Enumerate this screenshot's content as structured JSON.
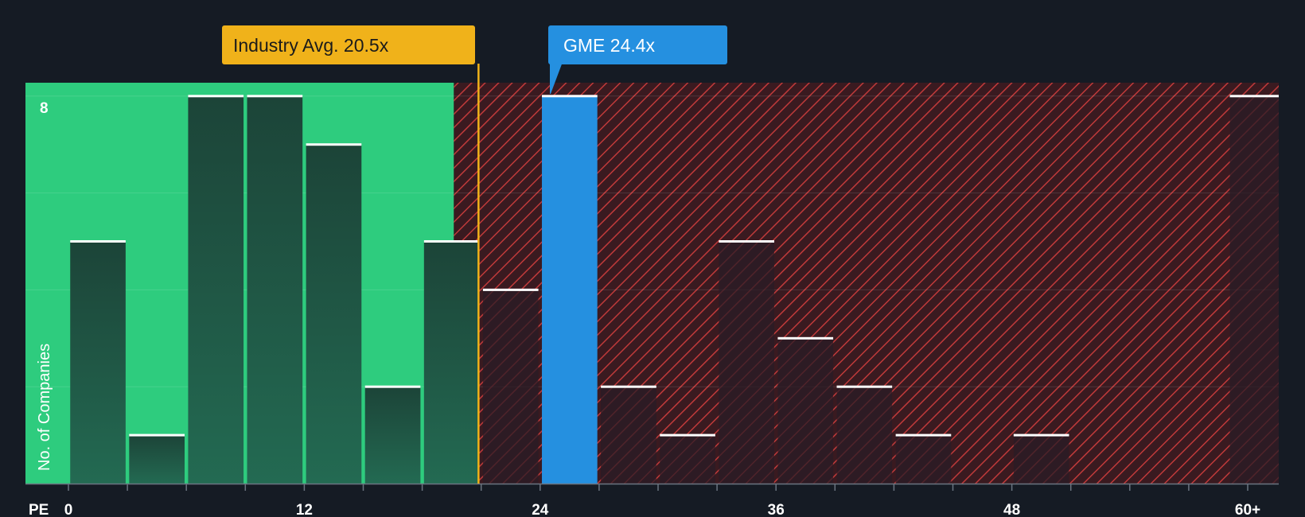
{
  "chart_data": {
    "type": "bar",
    "xlabel": "PE",
    "ylabel": "No. of Companies",
    "x_ticks": [
      "0",
      "12",
      "24",
      "36",
      "48",
      "60+"
    ],
    "y_ticks": [
      "8"
    ],
    "x_range": [
      0,
      61.5
    ],
    "y_range": [
      0,
      8.3
    ],
    "bins": [
      {
        "x": 1.5,
        "value": 5
      },
      {
        "x": 4.5,
        "value": 1
      },
      {
        "x": 7.5,
        "value": 8
      },
      {
        "x": 10.5,
        "value": 8
      },
      {
        "x": 13.5,
        "value": 7
      },
      {
        "x": 16.5,
        "value": 2
      },
      {
        "x": 19.5,
        "value": 5
      },
      {
        "x": 22.5,
        "value": 4
      },
      {
        "x": 25.5,
        "value": 8,
        "highlight": true
      },
      {
        "x": 28.5,
        "value": 2
      },
      {
        "x": 31.5,
        "value": 1
      },
      {
        "x": 34.5,
        "value": 5
      },
      {
        "x": 37.5,
        "value": 3
      },
      {
        "x": 40.5,
        "value": 2
      },
      {
        "x": 43.5,
        "value": 1
      },
      {
        "x": 49.5,
        "value": 1
      },
      {
        "x": 60.5,
        "value": 8
      }
    ],
    "industry_avg": {
      "value": 20.5,
      "label": "Industry Avg. 20.5x"
    },
    "company": {
      "ticker": "GME",
      "value": 24.4,
      "label": "GME 24.4x"
    },
    "colors": {
      "background": "#151b24",
      "fair_zone": "#2ecc7e",
      "overvalued_zone": "#3a1a20",
      "hatch": "#c03a3a",
      "bar_in_fair": "#1f4a40",
      "bar_overvalued": "#2a1c26",
      "highlight_bar": "#2590e0",
      "industry_callout": "#f0b21a",
      "company_callout": "#2590e0"
    }
  }
}
